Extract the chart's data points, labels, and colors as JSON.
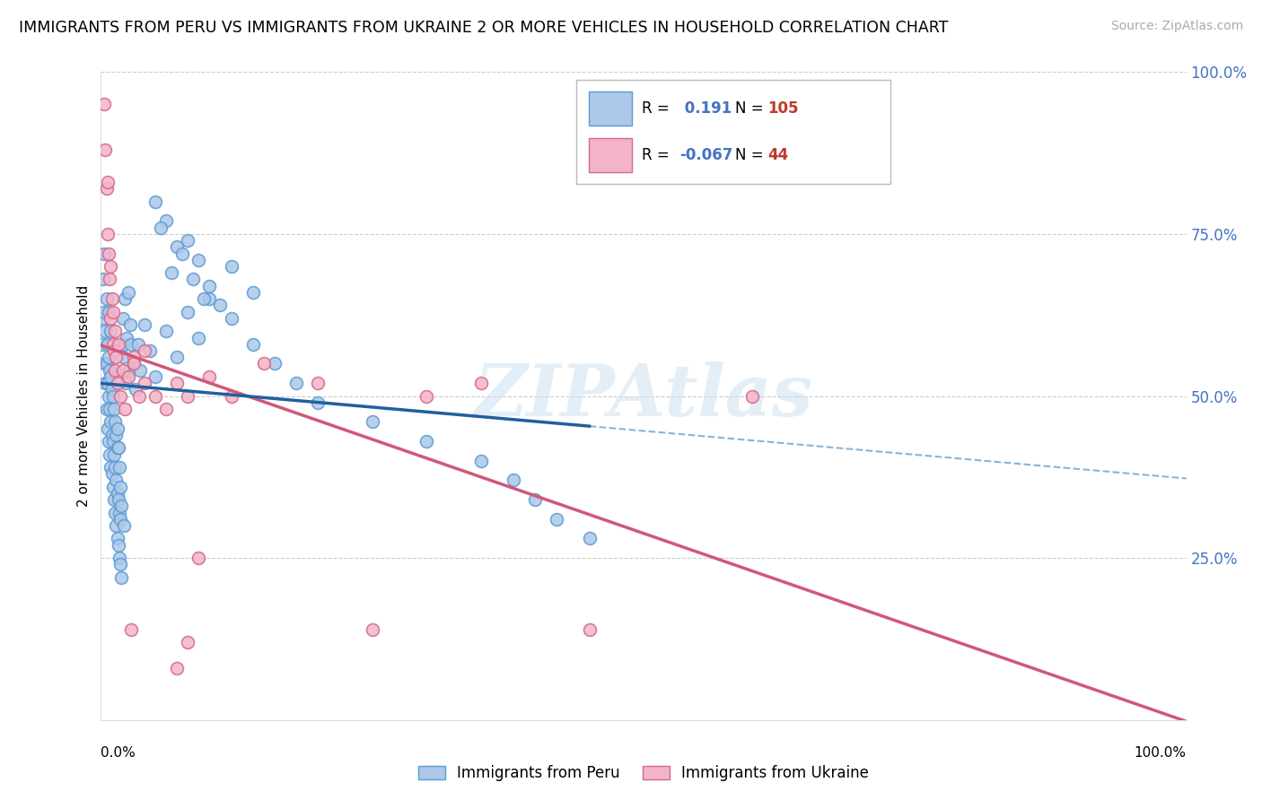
{
  "title": "IMMIGRANTS FROM PERU VS IMMIGRANTS FROM UKRAINE 2 OR MORE VEHICLES IN HOUSEHOLD CORRELATION CHART",
  "source": "Source: ZipAtlas.com",
  "ylabel": "2 or more Vehicles in Household",
  "xlim": [
    0.0,
    1.0
  ],
  "ylim": [
    0.0,
    1.0
  ],
  "yticks": [
    0.25,
    0.5,
    0.75,
    1.0
  ],
  "ytick_labels": [
    "25.0%",
    "50.0%",
    "75.0%",
    "100.0%"
  ],
  "peru_color": "#adc8e8",
  "peru_edge_color": "#5b9bd5",
  "ukraine_color": "#f4b4c8",
  "ukraine_edge_color": "#d46888",
  "peru_R": 0.191,
  "peru_N": 105,
  "ukraine_R": -0.067,
  "ukraine_N": 44,
  "blue_line_color": "#2060a0",
  "blue_dashed_color": "#88b4d8",
  "pink_line_color": "#d05878",
  "legend_R_color": "#4472c4",
  "legend_N_color": "#c0392b",
  "watermark_color": "#cce0f0",
  "title_fontsize": 12.5,
  "marker_size": 100,
  "peru_x": [
    0.001,
    0.002,
    0.002,
    0.003,
    0.003,
    0.003,
    0.004,
    0.004,
    0.005,
    0.005,
    0.005,
    0.006,
    0.006,
    0.006,
    0.007,
    0.007,
    0.007,
    0.007,
    0.008,
    0.008,
    0.008,
    0.009,
    0.009,
    0.009,
    0.009,
    0.01,
    0.01,
    0.01,
    0.011,
    0.011,
    0.011,
    0.012,
    0.012,
    0.012,
    0.013,
    0.013,
    0.013,
    0.014,
    0.014,
    0.014,
    0.015,
    0.015,
    0.015,
    0.016,
    0.016,
    0.017,
    0.017,
    0.018,
    0.018,
    0.019,
    0.02,
    0.02,
    0.021,
    0.022,
    0.023,
    0.024,
    0.025,
    0.026,
    0.027,
    0.028,
    0.03,
    0.032,
    0.034,
    0.036,
    0.04,
    0.045,
    0.05,
    0.06,
    0.07,
    0.08,
    0.09,
    0.1,
    0.12,
    0.14,
    0.16,
    0.18,
    0.2,
    0.25,
    0.3,
    0.35,
    0.38,
    0.4,
    0.42,
    0.45,
    0.12,
    0.14,
    0.08,
    0.09,
    0.1,
    0.11,
    0.06,
    0.07,
    0.05,
    0.055,
    0.065,
    0.075,
    0.085,
    0.095,
    0.015,
    0.016,
    0.017,
    0.018,
    0.019,
    0.021
  ],
  "peru_y": [
    0.58,
    0.62,
    0.68,
    0.55,
    0.63,
    0.72,
    0.52,
    0.6,
    0.48,
    0.55,
    0.65,
    0.45,
    0.52,
    0.58,
    0.43,
    0.5,
    0.56,
    0.63,
    0.41,
    0.48,
    0.54,
    0.39,
    0.46,
    0.53,
    0.6,
    0.38,
    0.44,
    0.51,
    0.36,
    0.43,
    0.5,
    0.34,
    0.41,
    0.48,
    0.32,
    0.39,
    0.46,
    0.3,
    0.37,
    0.44,
    0.28,
    0.35,
    0.42,
    0.27,
    0.34,
    0.25,
    0.32,
    0.24,
    0.31,
    0.22,
    0.56,
    0.62,
    0.58,
    0.65,
    0.52,
    0.59,
    0.66,
    0.54,
    0.61,
    0.58,
    0.55,
    0.51,
    0.58,
    0.54,
    0.61,
    0.57,
    0.53,
    0.6,
    0.56,
    0.63,
    0.59,
    0.65,
    0.62,
    0.58,
    0.55,
    0.52,
    0.49,
    0.46,
    0.43,
    0.4,
    0.37,
    0.34,
    0.31,
    0.28,
    0.7,
    0.66,
    0.74,
    0.71,
    0.67,
    0.64,
    0.77,
    0.73,
    0.8,
    0.76,
    0.69,
    0.72,
    0.68,
    0.65,
    0.45,
    0.42,
    0.39,
    0.36,
    0.33,
    0.3
  ],
  "ukraine_x": [
    0.003,
    0.004,
    0.005,
    0.006,
    0.006,
    0.007,
    0.008,
    0.009,
    0.009,
    0.01,
    0.011,
    0.011,
    0.012,
    0.013,
    0.013,
    0.014,
    0.015,
    0.016,
    0.018,
    0.02,
    0.022,
    0.025,
    0.028,
    0.03,
    0.035,
    0.04,
    0.05,
    0.06,
    0.07,
    0.08,
    0.09,
    0.1,
    0.12,
    0.15,
    0.2,
    0.25,
    0.3,
    0.35,
    0.45,
    0.6,
    0.07,
    0.08,
    0.03,
    0.04
  ],
  "ukraine_y": [
    0.95,
    0.88,
    0.82,
    0.75,
    0.83,
    0.72,
    0.68,
    0.62,
    0.7,
    0.65,
    0.58,
    0.63,
    0.57,
    0.6,
    0.54,
    0.56,
    0.52,
    0.58,
    0.5,
    0.54,
    0.48,
    0.53,
    0.14,
    0.56,
    0.5,
    0.52,
    0.5,
    0.48,
    0.52,
    0.5,
    0.25,
    0.53,
    0.5,
    0.55,
    0.52,
    0.14,
    0.5,
    0.52,
    0.14,
    0.5,
    0.08,
    0.12,
    0.55,
    0.57
  ]
}
